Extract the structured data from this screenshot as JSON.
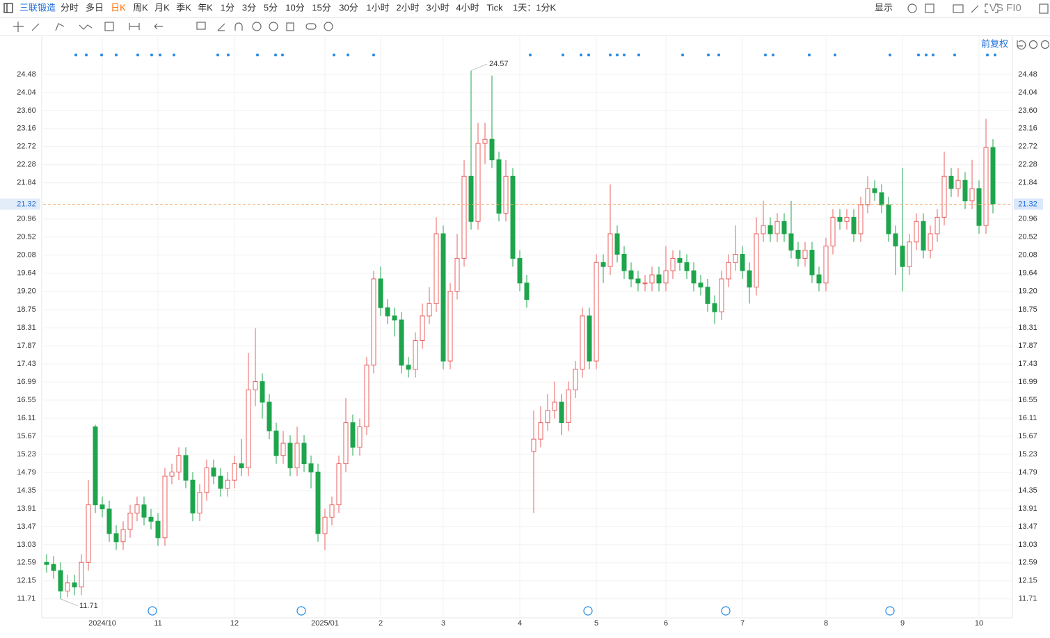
{
  "toolbar": {
    "symbol": "三联锻造",
    "periods": [
      "分时",
      "多日",
      "日K",
      "周K",
      "月K",
      "季K",
      "年K",
      "1分",
      "3分",
      "5分",
      "10分",
      "15分",
      "30分",
      "1小时",
      "2小时",
      "3小时",
      "4小时",
      "Tick"
    ],
    "range": "1天：1分K",
    "display": "显示",
    "compare": "VS FI0",
    "adjust": "前复权"
  },
  "chart_data": {
    "type": "candlestick",
    "up_color": "#e8605f",
    "down_color": "#1ea54c",
    "grid": true,
    "ylim": [
      11.3,
      25.41
    ],
    "yticks": [
      11.71,
      12.15,
      12.59,
      13.03,
      13.47,
      13.91,
      14.35,
      14.79,
      15.23,
      15.67,
      16.11,
      16.55,
      16.99,
      17.43,
      17.87,
      18.31,
      18.75,
      {
        "value": 19.2,
        "label": "19.20"
      },
      19.64,
      20.08,
      20.52,
      20.96,
      21.84,
      22.28,
      22.72,
      23.16,
      {
        "value": 23.6,
        "label": "23.60"
      },
      24.04,
      24.48
    ],
    "categories": [
      null,
      null,
      null,
      null,
      null,
      null,
      null,
      null,
      "2024/10",
      null,
      null,
      null,
      null,
      null,
      null,
      null,
      "11",
      null,
      null,
      null,
      null,
      null,
      null,
      null,
      null,
      null,
      null,
      "12",
      null,
      null,
      null,
      null,
      null,
      null,
      null,
      null,
      null,
      null,
      null,
      null,
      "2025/01",
      null,
      null,
      null,
      null,
      null,
      null,
      null,
      "2",
      null,
      null,
      null,
      null,
      null,
      null,
      null,
      null,
      "3",
      null,
      null,
      null,
      null,
      null,
      null,
      null,
      null,
      null,
      null,
      "4",
      null,
      null,
      null,
      null,
      null,
      null,
      null,
      null,
      null,
      null,
      "5",
      null,
      null,
      null,
      null,
      null,
      null,
      null,
      null,
      null,
      "6",
      null,
      null,
      null,
      null,
      null,
      null,
      null,
      null,
      null,
      null,
      "7",
      null,
      null,
      null,
      null,
      null,
      null,
      null,
      null,
      null,
      null,
      null,
      "8",
      null,
      null,
      null,
      null,
      null,
      null,
      null,
      null,
      null,
      null,
      "9",
      null,
      null,
      null,
      null,
      null,
      null,
      null,
      null,
      null,
      null,
      "10",
      null,
      null
    ],
    "ohlc": [
      [
        12.6,
        12.8,
        12.35,
        12.55
      ],
      [
        12.55,
        12.75,
        12.2,
        12.4
      ],
      [
        12.4,
        12.6,
        11.71,
        11.9
      ],
      [
        11.9,
        12.3,
        11.75,
        12.1
      ],
      [
        12.1,
        12.3,
        11.8,
        12.0
      ],
      [
        12.0,
        12.8,
        11.8,
        12.6
      ],
      [
        12.6,
        14.6,
        12.4,
        14.0
      ],
      [
        15.9,
        15.95,
        13.8,
        14.0
      ],
      [
        14.0,
        14.2,
        13.7,
        13.9
      ],
      [
        13.9,
        14.1,
        13.1,
        13.3
      ],
      [
        13.3,
        13.5,
        12.9,
        13.1
      ],
      [
        13.1,
        13.6,
        12.9,
        13.4
      ],
      [
        13.4,
        14.0,
        13.2,
        13.8
      ],
      [
        13.8,
        14.2,
        13.6,
        14.0
      ],
      [
        14.0,
        14.2,
        13.5,
        13.7
      ],
      [
        13.7,
        13.9,
        13.4,
        13.6
      ],
      [
        13.6,
        13.8,
        13.0,
        13.2
      ],
      [
        13.2,
        14.9,
        13.0,
        14.7
      ],
      [
        14.7,
        15.0,
        14.5,
        14.8
      ],
      [
        14.8,
        15.4,
        14.6,
        15.2
      ],
      [
        15.2,
        15.4,
        14.4,
        14.6
      ],
      [
        14.6,
        14.8,
        13.6,
        13.8
      ],
      [
        13.8,
        14.5,
        13.6,
        14.3
      ],
      [
        14.3,
        15.1,
        14.1,
        14.9
      ],
      [
        14.9,
        15.1,
        14.5,
        14.7
      ],
      [
        14.7,
        14.9,
        14.2,
        14.4
      ],
      [
        14.4,
        14.8,
        14.2,
        14.6
      ],
      [
        14.6,
        15.2,
        14.4,
        15.0
      ],
      [
        15.0,
        15.6,
        14.7,
        14.9
      ],
      [
        14.9,
        17.7,
        14.7,
        16.8
      ],
      [
        16.8,
        18.3,
        16.4,
        17.0
      ],
      [
        17.0,
        17.2,
        16.1,
        16.5
      ],
      [
        16.5,
        16.7,
        15.6,
        15.8
      ],
      [
        15.8,
        16.0,
        15.0,
        15.2
      ],
      [
        15.2,
        15.8,
        15.0,
        15.5
      ],
      [
        15.5,
        15.7,
        14.7,
        14.9
      ],
      [
        14.9,
        15.9,
        14.7,
        15.5
      ],
      [
        15.5,
        15.7,
        14.8,
        15.0
      ],
      [
        15.0,
        15.2,
        14.4,
        14.8
      ],
      [
        14.8,
        15.0,
        13.1,
        13.3
      ],
      [
        13.3,
        13.9,
        12.9,
        13.7
      ],
      [
        13.7,
        14.2,
        13.5,
        14.0
      ],
      [
        14.0,
        15.2,
        13.8,
        15.0
      ],
      [
        15.0,
        16.6,
        14.8,
        16.0
      ],
      [
        16.0,
        16.2,
        15.2,
        15.4
      ],
      [
        15.4,
        16.1,
        15.2,
        15.9
      ],
      [
        15.9,
        17.6,
        15.7,
        17.4
      ],
      [
        17.4,
        19.7,
        17.2,
        19.5
      ],
      [
        19.5,
        19.8,
        18.6,
        18.8
      ],
      [
        18.8,
        19.0,
        18.4,
        18.6
      ],
      [
        18.6,
        18.8,
        18.1,
        18.5
      ],
      [
        18.5,
        18.7,
        17.2,
        17.4
      ],
      [
        17.4,
        17.6,
        17.1,
        17.3
      ],
      [
        17.3,
        18.2,
        17.1,
        18.0
      ],
      [
        18.0,
        18.9,
        17.8,
        18.6
      ],
      [
        18.6,
        19.3,
        18.4,
        18.9
      ],
      [
        18.9,
        21.0,
        18.7,
        20.6
      ],
      [
        20.6,
        20.8,
        17.3,
        17.5
      ],
      [
        17.5,
        19.4,
        17.3,
        19.2
      ],
      [
        19.2,
        20.6,
        19.0,
        20.0
      ],
      [
        20.0,
        22.4,
        19.8,
        22.0
      ],
      [
        22.0,
        24.57,
        20.7,
        20.9
      ],
      [
        20.9,
        23.3,
        20.7,
        22.8
      ],
      [
        22.8,
        23.3,
        22.3,
        22.9
      ],
      [
        22.9,
        24.45,
        22.2,
        22.4
      ],
      [
        22.4,
        22.6,
        20.9,
        21.1
      ],
      [
        21.1,
        22.4,
        20.9,
        22.0
      ],
      [
        22.0,
        22.2,
        19.8,
        20.0
      ],
      [
        20.0,
        20.2,
        19.2,
        19.4
      ],
      [
        19.4,
        19.6,
        18.8,
        19.0
      ],
      [
        15.3,
        16.3,
        13.8,
        15.6
      ],
      [
        15.6,
        16.4,
        15.4,
        16.0
      ],
      [
        16.0,
        16.7,
        15.8,
        16.3
      ],
      [
        16.3,
        17.0,
        16.1,
        16.5
      ],
      [
        16.5,
        16.7,
        15.7,
        16.0
      ],
      [
        16.0,
        17.0,
        15.8,
        16.8
      ],
      [
        16.8,
        17.5,
        16.6,
        17.3
      ],
      [
        17.3,
        18.8,
        17.1,
        18.6
      ],
      [
        18.6,
        18.8,
        17.3,
        17.5
      ],
      [
        17.5,
        20.1,
        17.3,
        19.9
      ],
      [
        19.9,
        20.1,
        19.4,
        19.8
      ],
      [
        19.8,
        21.8,
        19.6,
        20.6
      ],
      [
        20.6,
        20.8,
        19.9,
        20.1
      ],
      [
        20.1,
        20.3,
        19.5,
        19.7
      ],
      [
        19.7,
        19.9,
        19.3,
        19.5
      ],
      [
        19.5,
        19.7,
        19.2,
        19.4
      ],
      [
        19.4,
        19.6,
        19.2,
        19.4
      ],
      [
        19.4,
        19.8,
        19.2,
        19.6
      ],
      [
        19.6,
        19.8,
        19.2,
        19.4
      ],
      [
        19.4,
        20.3,
        19.2,
        19.7
      ],
      [
        19.7,
        20.2,
        19.5,
        20.0
      ],
      [
        20.0,
        20.2,
        19.7,
        19.9
      ],
      [
        19.9,
        20.1,
        19.5,
        19.7
      ],
      [
        19.7,
        19.9,
        19.2,
        19.4
      ],
      [
        19.4,
        19.6,
        19.1,
        19.3
      ],
      [
        19.3,
        19.5,
        18.7,
        18.9
      ],
      [
        18.9,
        19.1,
        18.4,
        18.7
      ],
      [
        18.7,
        19.7,
        18.5,
        19.5
      ],
      [
        19.5,
        20.1,
        19.3,
        19.9
      ],
      [
        19.9,
        20.8,
        19.7,
        20.1
      ],
      [
        20.1,
        20.3,
        19.5,
        19.7
      ],
      [
        19.7,
        19.9,
        18.9,
        19.3
      ],
      [
        19.3,
        21.0,
        19.1,
        20.6
      ],
      [
        20.6,
        21.4,
        20.4,
        20.8
      ],
      [
        20.8,
        21.0,
        20.4,
        20.6
      ],
      [
        20.6,
        21.1,
        20.4,
        20.9
      ],
      [
        20.9,
        21.1,
        20.4,
        20.6
      ],
      [
        20.6,
        21.4,
        20.0,
        20.2
      ],
      [
        20.2,
        20.4,
        19.8,
        20.0
      ],
      [
        20.0,
        20.4,
        19.8,
        20.2
      ],
      [
        20.2,
        20.4,
        19.4,
        19.6
      ],
      [
        19.6,
        19.8,
        19.2,
        19.4
      ],
      [
        19.4,
        20.5,
        19.2,
        20.3
      ],
      [
        20.3,
        21.2,
        20.1,
        21.0
      ],
      [
        21.0,
        21.2,
        20.7,
        20.9
      ],
      [
        20.9,
        21.2,
        20.7,
        21.0
      ],
      [
        21.0,
        21.2,
        20.4,
        20.6
      ],
      [
        20.6,
        21.5,
        20.4,
        21.3
      ],
      [
        21.3,
        22.0,
        21.1,
        21.7
      ],
      [
        21.7,
        21.9,
        21.4,
        21.6
      ],
      [
        21.6,
        21.8,
        21.1,
        21.3
      ],
      [
        21.3,
        21.5,
        20.4,
        20.6
      ],
      [
        20.6,
        20.8,
        19.6,
        20.3
      ],
      [
        20.3,
        22.2,
        19.2,
        19.8
      ],
      [
        19.8,
        20.6,
        19.6,
        20.4
      ],
      [
        20.4,
        21.1,
        20.2,
        20.9
      ],
      [
        20.9,
        21.1,
        20.0,
        20.2
      ],
      [
        20.2,
        20.8,
        20.0,
        20.6
      ],
      [
        20.6,
        21.2,
        20.4,
        21.0
      ],
      [
        21.0,
        22.6,
        20.8,
        22.0
      ],
      [
        22.0,
        22.2,
        21.5,
        21.7
      ],
      [
        21.7,
        22.2,
        21.5,
        21.9
      ],
      [
        21.9,
        22.1,
        21.2,
        21.4
      ],
      [
        21.4,
        22.4,
        21.2,
        21.7
      ],
      [
        21.7,
        21.9,
        20.6,
        20.8
      ],
      [
        20.8,
        23.4,
        20.6,
        22.7
      ],
      [
        22.7,
        22.9,
        21.1,
        21.32
      ]
    ]
  }
}
